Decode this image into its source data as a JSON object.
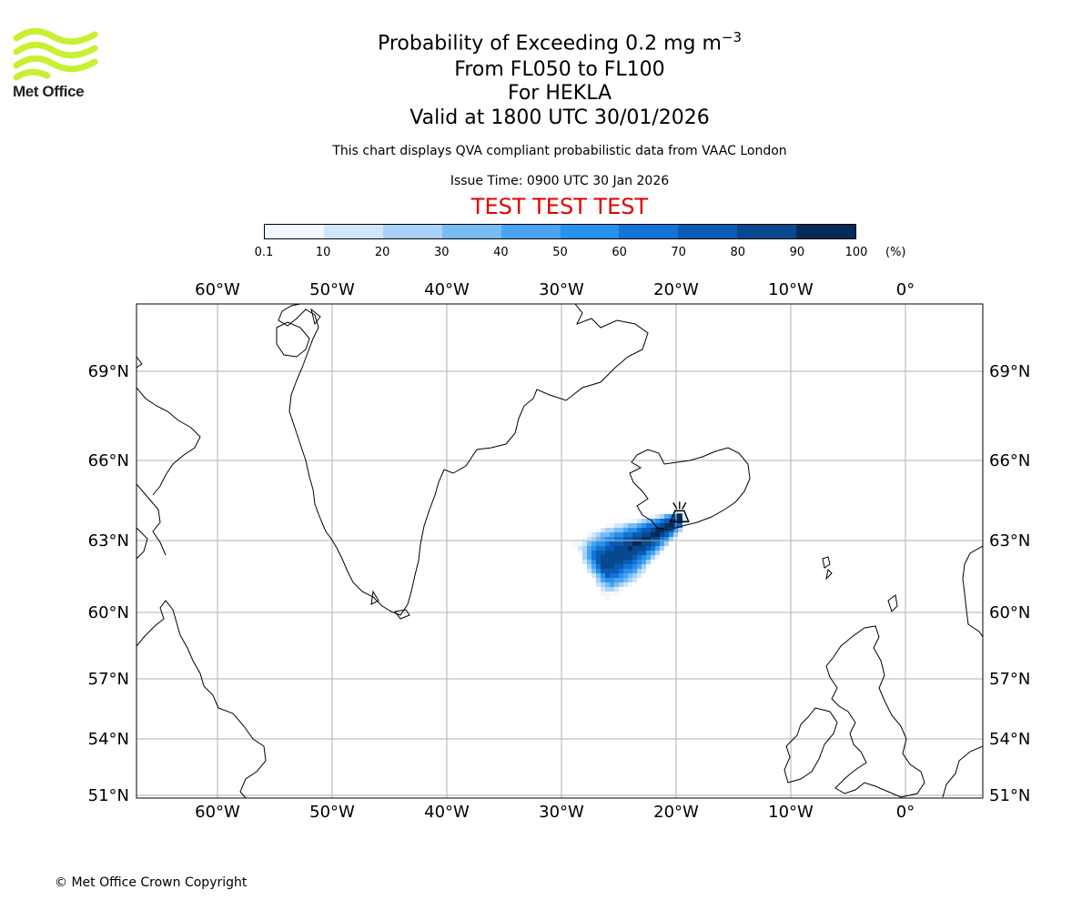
{
  "logo": {
    "name": "Met Office",
    "icon": "met-office-wave-logo",
    "color": "#c8f032"
  },
  "header": {
    "title_prefix": "Probability of Exceeding 0.2 mg m",
    "title_exponent": "−3",
    "flight_levels": "From FL050 to FL100",
    "volcano": "For HEKLA",
    "valid_time": "Valid at 1800 UTC 30/01/2026",
    "description": "This chart displays QVA compliant probabilistic data from VAAC London",
    "issue_time": "Issue Time: 0900 UTC 30 Jan 2026",
    "test_banner": "TEST TEST TEST"
  },
  "colorbar": {
    "ticks": [
      "0.1",
      "10",
      "20",
      "30",
      "40",
      "50",
      "60",
      "70",
      "80",
      "90",
      "100"
    ],
    "unit": "(%)",
    "colors": [
      "#f2f8ff",
      "#cfe6fb",
      "#a8d2f7",
      "#78bcf5",
      "#4aa4f1",
      "#2791eb",
      "#1473d6",
      "#0a5bb6",
      "#07488f",
      "#042b59"
    ],
    "text_color": "#e00000"
  },
  "map": {
    "lon_labels_top": [
      "60°W",
      "50°W",
      "40°W",
      "30°W",
      "20°W",
      "10°W",
      "0°"
    ],
    "lon_labels_bottom": [
      "60°W",
      "50°W",
      "40°W",
      "30°W",
      "20°W",
      "10°W",
      "0°"
    ],
    "lat_labels_left": [
      "69°N",
      "66°N",
      "63°N",
      "60°N",
      "57°N",
      "54°N",
      "51°N"
    ],
    "lat_labels_right": [
      "69°N",
      "66°N",
      "63°N",
      "60°N",
      "57°N",
      "54°N",
      "51°N"
    ],
    "volcano_marker": {
      "name": "HEKLA",
      "icon": "volcano-icon",
      "lon": -19.7,
      "lat": 63.98
    },
    "plume_probability": {
      "description_source": "probability field (%) of exceeding 0.2 mg m^-3",
      "cores": [
        {
          "lon": -22.0,
          "lat": 63.2,
          "peak": 95
        },
        {
          "lon": -25.0,
          "lat": 62.3,
          "peak": 88
        }
      ]
    },
    "grid_color": "#b0b0b0"
  },
  "footer": {
    "copyright": "© Met Office Crown Copyright"
  }
}
